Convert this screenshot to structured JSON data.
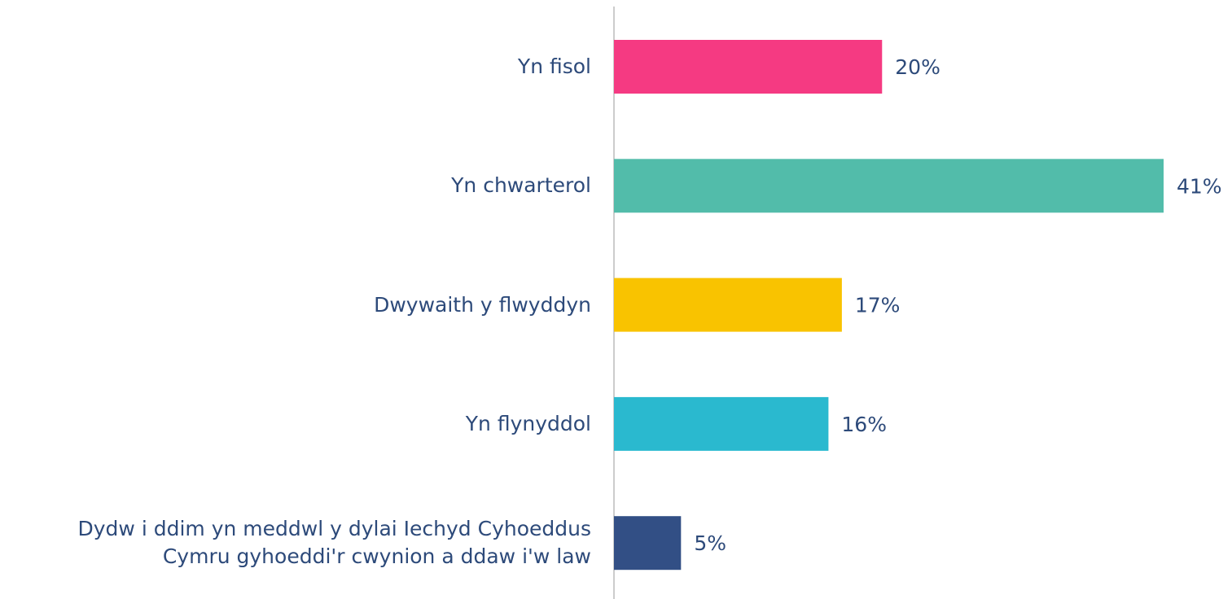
{
  "chart_data": {
    "type": "bar",
    "orientation": "horizontal",
    "categories": [
      "Yn fisol",
      "Yn chwarterol",
      "Dwywaith y flwyddyn",
      "Yn flynyddol",
      "Dydw i ddim yn meddwl y dylai Iechyd Cyhoeddus\nCymru gyhoeddi'r cwynion a ddaw i'w law"
    ],
    "values": [
      20,
      41,
      17,
      16,
      5
    ],
    "value_labels": [
      "20%",
      "41%",
      "17%",
      "16%",
      "5%"
    ],
    "colors": [
      "#f53a82",
      "#52bcaa",
      "#f9c300",
      "#2ab9cf",
      "#324f85"
    ]
  }
}
